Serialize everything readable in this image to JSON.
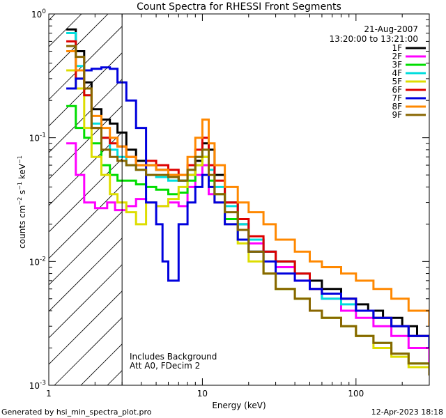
{
  "chart_data": {
    "type": "line",
    "title": "Count Spectra for RHESSI Front Segments",
    "xlabel": "Energy (keV)",
    "ylabel": "counts cm-2 s-1 keV-1",
    "xscale": "log",
    "yscale": "log",
    "xlim": [
      1,
      300
    ],
    "ylim": [
      0.001,
      1
    ],
    "x_tick_labels": [
      {
        "value": 1,
        "label": "1"
      },
      {
        "value": 10,
        "label": "10"
      },
      {
        "value": 100,
        "label": "100"
      }
    ],
    "y_tick_labels": [
      {
        "value": 1,
        "base": "10",
        "exp": "0"
      },
      {
        "value": 0.1,
        "base": "10",
        "exp": "-1"
      },
      {
        "value": 0.01,
        "base": "10",
        "exp": "-2"
      },
      {
        "value": 0.001,
        "base": "10",
        "exp": "-3"
      }
    ],
    "date": "21-Aug-2007",
    "time_range": "13:20:00 to 13:21:00",
    "shaded_region_xlim": [
      1,
      3
    ],
    "vertical_line_x": 3,
    "annotations": [
      "Includes Background",
      "Att A0, FDecim 2"
    ],
    "legend_position": "top-right",
    "series": [
      {
        "name": "1F",
        "color": "#000000",
        "points": [
          [
            1.3,
            0.75
          ],
          [
            1.5,
            0.5
          ],
          [
            1.7,
            0.28
          ],
          [
            1.9,
            0.17
          ],
          [
            2.2,
            0.14
          ],
          [
            2.5,
            0.13
          ],
          [
            2.8,
            0.11
          ],
          [
            3.2,
            0.08
          ],
          [
            3.7,
            0.065
          ],
          [
            4.3,
            0.06
          ],
          [
            5,
            0.055
          ],
          [
            6,
            0.05
          ],
          [
            7,
            0.045
          ],
          [
            8,
            0.05
          ],
          [
            9,
            0.065
          ],
          [
            10,
            0.09
          ],
          [
            11,
            0.08
          ],
          [
            12,
            0.05
          ],
          [
            14,
            0.03
          ],
          [
            17,
            0.02
          ],
          [
            20,
            0.015
          ],
          [
            25,
            0.012
          ],
          [
            30,
            0.01
          ],
          [
            40,
            0.008
          ],
          [
            50,
            0.007
          ],
          [
            60,
            0.006
          ],
          [
            80,
            0.005
          ],
          [
            100,
            0.0045
          ],
          [
            120,
            0.004
          ],
          [
            150,
            0.0035
          ],
          [
            200,
            0.003
          ],
          [
            250,
            0.0025
          ],
          [
            300,
            0.002
          ]
        ]
      },
      {
        "name": "2F",
        "color": "#ff00ff",
        "points": [
          [
            1.3,
            0.09
          ],
          [
            1.5,
            0.05
          ],
          [
            1.7,
            0.03
          ],
          [
            2.0,
            0.027
          ],
          [
            2.4,
            0.03
          ],
          [
            2.7,
            0.026
          ],
          [
            3.2,
            0.028
          ],
          [
            3.7,
            0.032
          ],
          [
            4.3,
            0.03
          ],
          [
            5,
            0.028
          ],
          [
            6,
            0.03
          ],
          [
            7,
            0.028
          ],
          [
            8,
            0.04
          ],
          [
            9,
            0.05
          ],
          [
            10,
            0.06
          ],
          [
            11,
            0.035
          ],
          [
            12,
            0.03
          ],
          [
            14,
            0.022
          ],
          [
            17,
            0.018
          ],
          [
            20,
            0.014
          ],
          [
            25,
            0.012
          ],
          [
            30,
            0.009
          ],
          [
            40,
            0.007
          ],
          [
            50,
            0.006
          ],
          [
            60,
            0.005
          ],
          [
            80,
            0.004
          ],
          [
            100,
            0.0035
          ],
          [
            130,
            0.003
          ],
          [
            170,
            0.0025
          ],
          [
            220,
            0.002
          ],
          [
            300,
            0.0015
          ]
        ]
      },
      {
        "name": "3F",
        "color": "#00dd00",
        "points": [
          [
            1.3,
            0.18
          ],
          [
            1.5,
            0.12
          ],
          [
            1.7,
            0.1
          ],
          [
            1.9,
            0.09
          ],
          [
            2.2,
            0.06
          ],
          [
            2.5,
            0.05
          ],
          [
            2.8,
            0.045
          ],
          [
            3.2,
            0.045
          ],
          [
            3.7,
            0.042
          ],
          [
            4.3,
            0.04
          ],
          [
            5,
            0.038
          ],
          [
            6,
            0.035
          ],
          [
            7,
            0.036
          ],
          [
            8,
            0.045
          ],
          [
            9,
            0.06
          ],
          [
            10,
            0.07
          ],
          [
            11,
            0.045
          ],
          [
            12,
            0.035
          ],
          [
            14,
            0.022
          ],
          [
            17,
            0.015
          ],
          [
            20,
            0.012
          ],
          [
            25,
            0.008
          ],
          [
            30,
            0.006
          ],
          [
            40,
            0.005
          ],
          [
            50,
            0.004
          ],
          [
            60,
            0.0035
          ],
          [
            80,
            0.003
          ],
          [
            100,
            0.0025
          ],
          [
            130,
            0.0022
          ],
          [
            170,
            0.0018
          ],
          [
            220,
            0.0015
          ],
          [
            300,
            0.0012
          ]
        ]
      },
      {
        "name": "4F",
        "color": "#00dddd",
        "points": [
          [
            1.3,
            0.7
          ],
          [
            1.5,
            0.38
          ],
          [
            1.7,
            0.22
          ],
          [
            1.9,
            0.13
          ],
          [
            2.2,
            0.1
          ],
          [
            2.5,
            0.08
          ],
          [
            2.8,
            0.07
          ],
          [
            3.2,
            0.06
          ],
          [
            3.7,
            0.055
          ],
          [
            4.3,
            0.05
          ],
          [
            5,
            0.048
          ],
          [
            6,
            0.045
          ],
          [
            7,
            0.045
          ],
          [
            8,
            0.055
          ],
          [
            9,
            0.07
          ],
          [
            10,
            0.08
          ],
          [
            11,
            0.055
          ],
          [
            12,
            0.04
          ],
          [
            14,
            0.028
          ],
          [
            17,
            0.02
          ],
          [
            20,
            0.015
          ],
          [
            25,
            0.012
          ],
          [
            30,
            0.01
          ],
          [
            40,
            0.008
          ],
          [
            50,
            0.006
          ],
          [
            60,
            0.005
          ],
          [
            80,
            0.0045
          ],
          [
            100,
            0.004
          ],
          [
            130,
            0.0035
          ],
          [
            170,
            0.003
          ],
          [
            220,
            0.0025
          ],
          [
            300,
            0.002
          ]
        ]
      },
      {
        "name": "5F",
        "color": "#dddd00",
        "points": [
          [
            1.3,
            0.35
          ],
          [
            1.5,
            0.25
          ],
          [
            1.7,
            0.12
          ],
          [
            1.9,
            0.07
          ],
          [
            2.2,
            0.05
          ],
          [
            2.5,
            0.035
          ],
          [
            2.8,
            0.03
          ],
          [
            3.2,
            0.025
          ],
          [
            3.7,
            0.02
          ],
          [
            4.3,
            0.03
          ],
          [
            5,
            0.028
          ],
          [
            6,
            0.032
          ],
          [
            7,
            0.04
          ],
          [
            8,
            0.05
          ],
          [
            9,
            0.06
          ],
          [
            10,
            0.07
          ],
          [
            11,
            0.04
          ],
          [
            12,
            0.03
          ],
          [
            14,
            0.02
          ],
          [
            17,
            0.014
          ],
          [
            20,
            0.01
          ],
          [
            25,
            0.008
          ],
          [
            30,
            0.006
          ],
          [
            40,
            0.005
          ],
          [
            50,
            0.004
          ],
          [
            60,
            0.0035
          ],
          [
            80,
            0.003
          ],
          [
            100,
            0.0025
          ],
          [
            130,
            0.002
          ],
          [
            170,
            0.0017
          ],
          [
            220,
            0.0014
          ],
          [
            300,
            0.0012
          ]
        ]
      },
      {
        "name": "6F",
        "color": "#dd0000",
        "points": [
          [
            1.3,
            0.6
          ],
          [
            1.5,
            0.3
          ],
          [
            1.7,
            0.22
          ],
          [
            1.9,
            0.12
          ],
          [
            2.2,
            0.1
          ],
          [
            2.5,
            0.09
          ],
          [
            2.8,
            0.085
          ],
          [
            3.2,
            0.07
          ],
          [
            3.7,
            0.06
          ],
          [
            4.3,
            0.065
          ],
          [
            5,
            0.06
          ],
          [
            6,
            0.055
          ],
          [
            7,
            0.05
          ],
          [
            8,
            0.06
          ],
          [
            9,
            0.08
          ],
          [
            10,
            0.1
          ],
          [
            11,
            0.06
          ],
          [
            12,
            0.045
          ],
          [
            14,
            0.03
          ],
          [
            17,
            0.022
          ],
          [
            20,
            0.016
          ],
          [
            25,
            0.012
          ],
          [
            30,
            0.01
          ],
          [
            40,
            0.008
          ],
          [
            50,
            0.006
          ],
          [
            60,
            0.0055
          ],
          [
            80,
            0.005
          ],
          [
            100,
            0.004
          ],
          [
            130,
            0.0035
          ],
          [
            170,
            0.003
          ],
          [
            220,
            0.0025
          ],
          [
            300,
            0.002
          ]
        ]
      },
      {
        "name": "7F",
        "color": "#0000dd",
        "points": [
          [
            1.3,
            0.25
          ],
          [
            1.5,
            0.3
          ],
          [
            1.7,
            0.35
          ],
          [
            1.9,
            0.36
          ],
          [
            2.2,
            0.37
          ],
          [
            2.5,
            0.36
          ],
          [
            2.8,
            0.28
          ],
          [
            3.2,
            0.2
          ],
          [
            3.7,
            0.12
          ],
          [
            4.3,
            0.03
          ],
          [
            5,
            0.02
          ],
          [
            5.5,
            0.01
          ],
          [
            6,
            0.007
          ],
          [
            7,
            0.02
          ],
          [
            8,
            0.03
          ],
          [
            9,
            0.04
          ],
          [
            10,
            0.05
          ],
          [
            11,
            0.04
          ],
          [
            12,
            0.03
          ],
          [
            14,
            0.02
          ],
          [
            17,
            0.015
          ],
          [
            20,
            0.012
          ],
          [
            25,
            0.01
          ],
          [
            30,
            0.008
          ],
          [
            40,
            0.007
          ],
          [
            50,
            0.006
          ],
          [
            60,
            0.0055
          ],
          [
            80,
            0.005
          ],
          [
            100,
            0.004
          ],
          [
            130,
            0.0035
          ],
          [
            170,
            0.003
          ],
          [
            220,
            0.0025
          ],
          [
            300,
            0.002
          ]
        ]
      },
      {
        "name": "8F",
        "color": "#ff8800",
        "points": [
          [
            1.3,
            0.5
          ],
          [
            1.5,
            0.35
          ],
          [
            1.7,
            0.25
          ],
          [
            1.9,
            0.15
          ],
          [
            2.2,
            0.12
          ],
          [
            2.5,
            0.1
          ],
          [
            2.8,
            0.085
          ],
          [
            3.2,
            0.07
          ],
          [
            3.7,
            0.06
          ],
          [
            4.3,
            0.06
          ],
          [
            5,
            0.055
          ],
          [
            6,
            0.05
          ],
          [
            7,
            0.05
          ],
          [
            8,
            0.07
          ],
          [
            9,
            0.1
          ],
          [
            10,
            0.14
          ],
          [
            11,
            0.09
          ],
          [
            12,
            0.06
          ],
          [
            14,
            0.04
          ],
          [
            17,
            0.03
          ],
          [
            20,
            0.025
          ],
          [
            25,
            0.02
          ],
          [
            30,
            0.015
          ],
          [
            40,
            0.012
          ],
          [
            50,
            0.01
          ],
          [
            60,
            0.009
          ],
          [
            80,
            0.008
          ],
          [
            100,
            0.007
          ],
          [
            130,
            0.006
          ],
          [
            170,
            0.005
          ],
          [
            220,
            0.004
          ],
          [
            300,
            0.003
          ]
        ]
      },
      {
        "name": "9F",
        "color": "#886600",
        "points": [
          [
            1.3,
            0.55
          ],
          [
            1.5,
            0.45
          ],
          [
            1.7,
            0.25
          ],
          [
            1.9,
            0.12
          ],
          [
            2.2,
            0.08
          ],
          [
            2.5,
            0.07
          ],
          [
            2.8,
            0.065
          ],
          [
            3.2,
            0.06
          ],
          [
            3.7,
            0.055
          ],
          [
            4.3,
            0.05
          ],
          [
            5,
            0.05
          ],
          [
            6,
            0.048
          ],
          [
            7,
            0.045
          ],
          [
            8,
            0.055
          ],
          [
            9,
            0.07
          ],
          [
            10,
            0.08
          ],
          [
            11,
            0.05
          ],
          [
            12,
            0.035
          ],
          [
            14,
            0.025
          ],
          [
            17,
            0.018
          ],
          [
            20,
            0.012
          ],
          [
            25,
            0.008
          ],
          [
            30,
            0.006
          ],
          [
            40,
            0.005
          ],
          [
            50,
            0.004
          ],
          [
            60,
            0.0035
          ],
          [
            80,
            0.003
          ],
          [
            100,
            0.0025
          ],
          [
            130,
            0.0022
          ],
          [
            170,
            0.0018
          ],
          [
            220,
            0.0015
          ],
          [
            300,
            0.0012
          ]
        ]
      }
    ]
  },
  "footer": {
    "generated_by": "Generated by hsi_min_spectra_plot.pro",
    "timestamp": "12-Apr-2023 18:18"
  }
}
